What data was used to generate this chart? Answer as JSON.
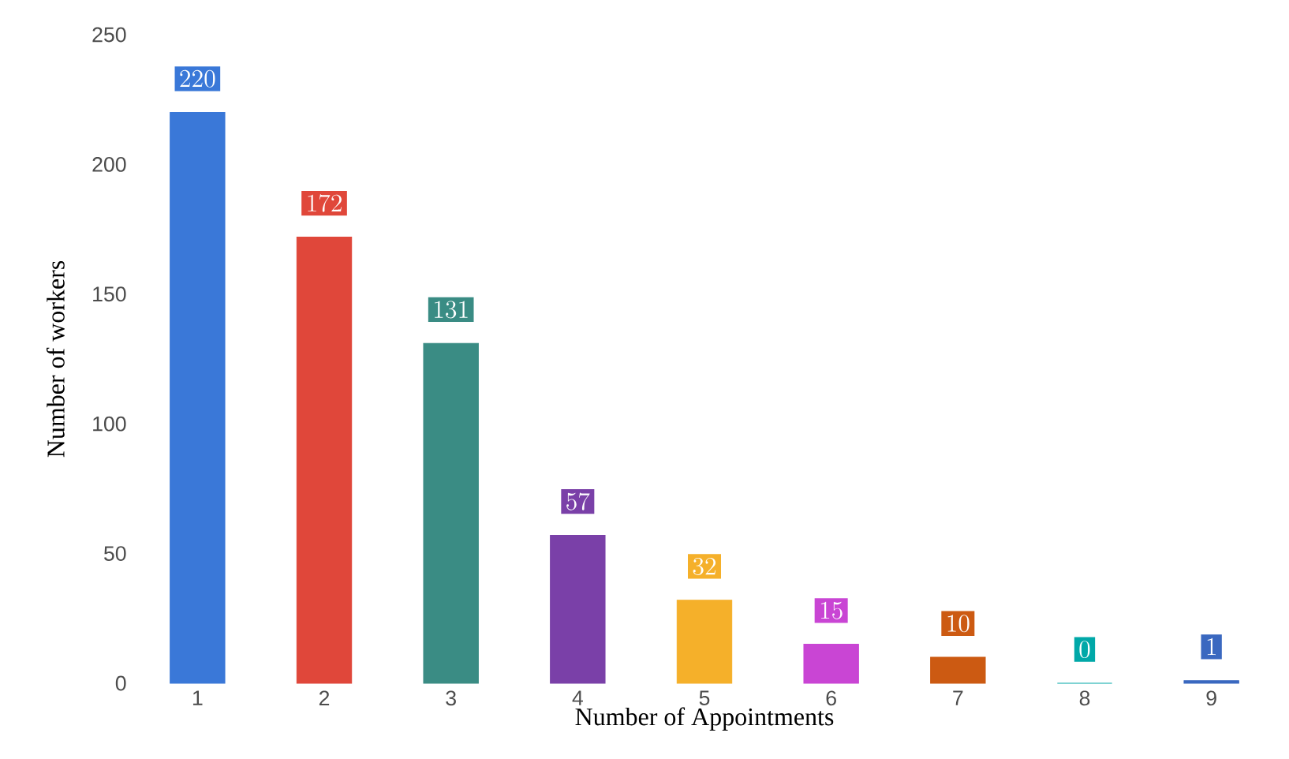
{
  "chart_data": {
    "type": "bar",
    "xlabel": "Number of Appointments",
    "ylabel": "Number of workers",
    "categories": [
      "1",
      "2",
      "3",
      "4",
      "5",
      "6",
      "7",
      "8",
      "9"
    ],
    "values": [
      220,
      172,
      131,
      57,
      32,
      15,
      10,
      0,
      1
    ],
    "colors": [
      "#3a78d8",
      "#e0473a",
      "#3a8c84",
      "#7a40a8",
      "#f5b02a",
      "#c945d4",
      "#cc5a12",
      "#00a8a8",
      "#3a68c0"
    ],
    "ylim": [
      0,
      250
    ],
    "yticks": [
      0,
      50,
      100,
      150,
      200,
      250
    ],
    "data_labels": true
  }
}
